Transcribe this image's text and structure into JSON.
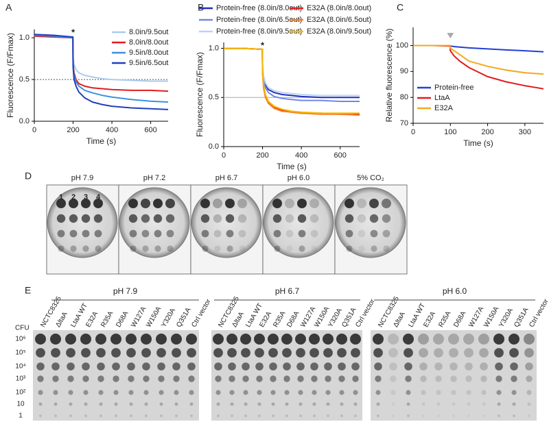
{
  "chart_data": [
    {
      "type": "line",
      "panel": "A",
      "xlabel": "Time (s)",
      "ylabel": "Fluorescence (F/Fmax)",
      "xlim": [
        0,
        690
      ],
      "xticks": [
        0,
        200,
        400,
        600
      ],
      "ylim": [
        0,
        1.1
      ],
      "yticks": [
        {
          "value": 0,
          "label": "0.0"
        },
        {
          "value": 0.5,
          "label": "0.5"
        },
        {
          "value": 1,
          "label": "1.0"
        }
      ],
      "hline": 0.5,
      "annotation": {
        "text": "*",
        "x": 200
      },
      "legend": "upper right",
      "x": [
        0,
        100,
        199,
        200,
        205,
        215,
        230,
        260,
        300,
        350,
        400,
        500,
        600,
        690
      ],
      "series": [
        {
          "name": "8.0in/9.5out",
          "color": "#aacbef",
          "values": [
            1.02,
            1.01,
            1.0,
            0.78,
            0.68,
            0.62,
            0.58,
            0.55,
            0.53,
            0.51,
            0.5,
            0.49,
            0.48,
            0.48
          ]
        },
        {
          "name": "8.0in/8.0out",
          "color": "#e41a1c",
          "values": [
            1.02,
            1.01,
            1.0,
            0.7,
            0.58,
            0.5,
            0.45,
            0.42,
            0.4,
            0.39,
            0.38,
            0.37,
            0.37,
            0.36
          ]
        },
        {
          "name": "9.5in/8.0out",
          "color": "#3b8fe2",
          "values": [
            1.03,
            1.02,
            1.0,
            0.68,
            0.55,
            0.47,
            0.42,
            0.37,
            0.34,
            0.31,
            0.29,
            0.26,
            0.24,
            0.23
          ]
        },
        {
          "name": "9.5in/6.5out",
          "color": "#1f3fbf",
          "values": [
            1.04,
            1.03,
            1.01,
            0.65,
            0.5,
            0.42,
            0.35,
            0.28,
            0.23,
            0.2,
            0.18,
            0.16,
            0.15,
            0.14
          ]
        }
      ]
    },
    {
      "type": "line",
      "panel": "B",
      "xlabel": "Time (s)",
      "ylabel": "Fluorescence (F/Fmax)",
      "xlim": [
        0,
        700
      ],
      "xticks": [
        0,
        200,
        400,
        600
      ],
      "ylim": [
        0,
        1.06
      ],
      "yticks": [
        {
          "value": 0,
          "label": "0.0"
        },
        {
          "value": 0.5,
          "label": "0.5"
        },
        {
          "value": 1,
          "label": "1.0"
        }
      ],
      "hline": 0.5,
      "annotation": {
        "text": "*",
        "x": 200
      },
      "legend": "top",
      "x": [
        0,
        100,
        199,
        200,
        205,
        215,
        230,
        260,
        300,
        350,
        400,
        500,
        600,
        700
      ],
      "series": [
        {
          "name": "Protein-free (8.0in/8.0out)",
          "color": "#1f2fbf",
          "values": [
            1.0,
            1.0,
            0.99,
            0.8,
            0.7,
            0.63,
            0.58,
            0.55,
            0.53,
            0.52,
            0.51,
            0.5,
            0.5,
            0.5
          ]
        },
        {
          "name": "Protein-free (8.0in/6.5out)",
          "color": "#7088e6",
          "values": [
            1.0,
            1.0,
            0.99,
            0.78,
            0.67,
            0.6,
            0.55,
            0.51,
            0.49,
            0.48,
            0.47,
            0.47,
            0.46,
            0.46
          ]
        },
        {
          "name": "Protein-free (8.0in/9.5out)",
          "color": "#bcd3f2",
          "values": [
            1.0,
            1.0,
            0.99,
            0.82,
            0.72,
            0.65,
            0.6,
            0.57,
            0.55,
            0.54,
            0.53,
            0.52,
            0.52,
            0.52
          ]
        },
        {
          "name": "E32A (8.0in/8.0out)",
          "color": "#e41a1c",
          "values": [
            1.0,
            1.0,
            0.99,
            0.75,
            0.62,
            0.52,
            0.45,
            0.4,
            0.37,
            0.35,
            0.34,
            0.34,
            0.33,
            0.33
          ]
        },
        {
          "name": "E32A (8.0in/6.5out)",
          "color": "#f57b20",
          "values": [
            1.0,
            1.0,
            0.99,
            0.74,
            0.6,
            0.5,
            0.44,
            0.39,
            0.36,
            0.35,
            0.34,
            0.33,
            0.33,
            0.32
          ]
        },
        {
          "name": "E32A (8.0in/9.5out)",
          "color": "#f5b800",
          "values": [
            1.0,
            1.0,
            0.99,
            0.76,
            0.63,
            0.53,
            0.46,
            0.41,
            0.38,
            0.36,
            0.35,
            0.34,
            0.34,
            0.34
          ]
        }
      ]
    },
    {
      "type": "line",
      "panel": "C",
      "xlabel": "Time (s)",
      "ylabel": "Relative fluorescence (%)",
      "xlim": [
        0,
        350
      ],
      "xticks": [
        0,
        100,
        200,
        300
      ],
      "ylim": [
        70,
        107
      ],
      "yticks": [
        70,
        80,
        90,
        100
      ],
      "marker_x": 100,
      "legend": "lower left",
      "x": [
        0,
        50,
        99,
        100,
        110,
        125,
        150,
        200,
        250,
        300,
        350
      ],
      "series": [
        {
          "name": "Protein-free",
          "color": "#1f3fd6",
          "values": [
            100,
            100,
            100,
            99.8,
            99.6,
            99.4,
            99.1,
            98.7,
            98.3,
            98,
            97.6
          ]
        },
        {
          "name": "LtaA",
          "color": "#e41a1c",
          "values": [
            100,
            100,
            99.8,
            98,
            96,
            94,
            91.5,
            88,
            86,
            84.5,
            83.3
          ]
        },
        {
          "name": "E32A",
          "color": "#f2a81d",
          "values": [
            100,
            100,
            100,
            99,
            98,
            96.5,
            94,
            92,
            90.5,
            89.5,
            89
          ]
        }
      ]
    }
  ],
  "panel_D": {
    "label": "D",
    "conditions": [
      "pH 7.9",
      "pH 7.2",
      "pH 6.7",
      "pH 6.0",
      "5% CO₂"
    ],
    "spot_numbers": [
      "1",
      "2",
      "3",
      "4"
    ]
  },
  "panel_E": {
    "label": "E",
    "groups": [
      "pH 7.9",
      "pH 6.7",
      "pH 6.0"
    ],
    "strains": [
      "NCTC8325",
      "ΔltaA",
      "LtaA WT",
      "E32A",
      "R35A",
      "D68A",
      "W127A",
      "W150A",
      "Y320A",
      "Q351A",
      "Ctrl vector"
    ],
    "cfu_header": "CFU",
    "cfu_labels": [
      "10⁶",
      "10⁵",
      "10⁴",
      "10³",
      "10²",
      "10",
      "1"
    ]
  }
}
